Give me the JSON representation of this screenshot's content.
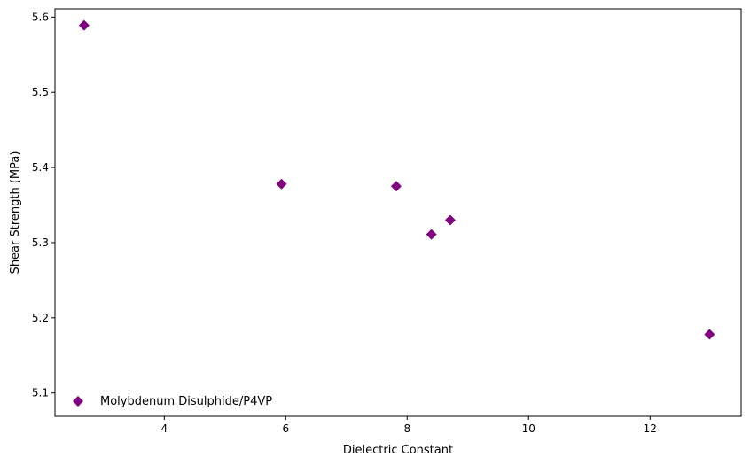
{
  "chart_data": {
    "type": "scatter",
    "title": "",
    "xlabel": "Dielectric Constant",
    "ylabel": "Shear Strength (MPa)",
    "xlim": [
      2.2,
      13.5
    ],
    "ylim": [
      5.069,
      5.611
    ],
    "xticks": [
      4,
      6,
      8,
      10,
      12
    ],
    "yticks": [
      5.1,
      5.2,
      5.3,
      5.4,
      5.5,
      5.6
    ],
    "grid": false,
    "legend_position": "lower-left",
    "series": [
      {
        "name": "Molybdenum Disulphide/P4VP",
        "marker": "diamond",
        "color": "#800080",
        "points": [
          {
            "x": 2.68,
            "y": 5.589
          },
          {
            "x": 5.93,
            "y": 5.378
          },
          {
            "x": 7.82,
            "y": 5.375
          },
          {
            "x": 8.4,
            "y": 5.311
          },
          {
            "x": 8.71,
            "y": 5.33
          },
          {
            "x": 12.98,
            "y": 5.178
          }
        ]
      }
    ]
  }
}
